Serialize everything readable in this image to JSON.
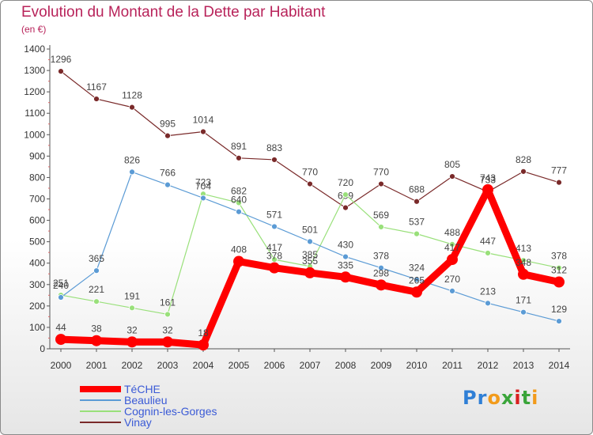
{
  "header": {
    "title": "Evolution du Montant de la Dette par Habitant",
    "subtitle": "(en €)"
  },
  "colors": {
    "title": "#b8235a",
    "legend_text": "#3a5ad6",
    "axis": "#555555",
    "tick_text": "#333333",
    "label_text": "#444444"
  },
  "logo": {
    "text": "Proxiti",
    "letters": [
      {
        "ch": "P",
        "color": "#2f7fd6"
      },
      {
        "ch": "r",
        "color": "#2f7fd6"
      },
      {
        "ch": "o",
        "color": "#f29b1b"
      },
      {
        "ch": "x",
        "color": "#3aa53a"
      },
      {
        "ch": "i",
        "color": "#d92020"
      },
      {
        "ch": "t",
        "color": "#3aa53a"
      },
      {
        "ch": "i",
        "color": "#f29b1b"
      }
    ]
  },
  "chart_data": {
    "type": "line",
    "title": "Evolution du Montant de la Dette par Habitant",
    "subtitle": "(en €)",
    "x": [
      "2000",
      "2001",
      "2002",
      "2003",
      "2004",
      "2005",
      "2006",
      "2007",
      "2008",
      "2009",
      "2010",
      "2011",
      "2012",
      "2013",
      "2014"
    ],
    "ylim": [
      0,
      1400
    ],
    "yticks": [
      0,
      100,
      200,
      300,
      400,
      500,
      600,
      700,
      800,
      900,
      1000,
      1100,
      1200,
      1300,
      1400
    ],
    "grid": false,
    "legend_position": "bottom-left",
    "series": [
      {
        "name": "TéCHE",
        "color": "#ff0000",
        "width": 9,
        "dot": 7,
        "values": [
          44,
          38,
          32,
          32,
          18,
          408,
          378,
          355,
          335,
          298,
          265,
          417,
          743,
          348,
          312
        ]
      },
      {
        "name": "Beaulieu",
        "color": "#5b9bd5",
        "width": 1.2,
        "dot": 3.5,
        "values": [
          240,
          365,
          826,
          766,
          704,
          640,
          571,
          501,
          430,
          378,
          324,
          270,
          213,
          171,
          129
        ]
      },
      {
        "name": "Cognin-les-Gorges",
        "color": "#99e07a",
        "width": 1.2,
        "dot": 3.5,
        "values": [
          251,
          221,
          191,
          161,
          723,
          682,
          417,
          385,
          720,
          569,
          537,
          488,
          447,
          413,
          378
        ]
      },
      {
        "name": "Vinay",
        "color": "#7a2a2a",
        "width": 1.2,
        "dot": 3.5,
        "values": [
          1296,
          1167,
          1128,
          995,
          1014,
          891,
          883,
          770,
          659,
          770,
          688,
          805,
          733,
          828,
          777
        ]
      }
    ]
  }
}
